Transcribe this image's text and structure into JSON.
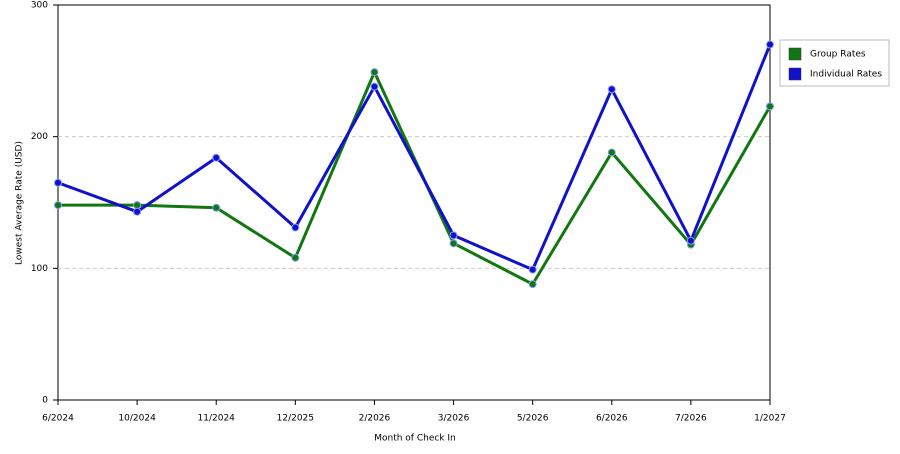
{
  "chart_data": {
    "type": "line",
    "x_label": "Month of Check In",
    "y_label": "Lowest Average Rate (USD)",
    "categories": [
      "6/2024",
      "10/2024",
      "11/2024",
      "12/2025",
      "2/2026",
      "3/2026",
      "5/2026",
      "6/2026",
      "7/2026",
      "1/2027"
    ],
    "series": [
      {
        "name": "Group Rates",
        "color": "#117711",
        "values": [
          148,
          148,
          146,
          108,
          249,
          119,
          88,
          188,
          118,
          223
        ]
      },
      {
        "name": "Individual Rates",
        "color": "#1111cc",
        "values": [
          165,
          143,
          184,
          131,
          238,
          125,
          99,
          236,
          121,
          270
        ]
      }
    ],
    "ylim": [
      0,
      300
    ],
    "yticks": [
      0,
      100,
      200,
      300
    ],
    "grid": true,
    "legend": "right"
  }
}
